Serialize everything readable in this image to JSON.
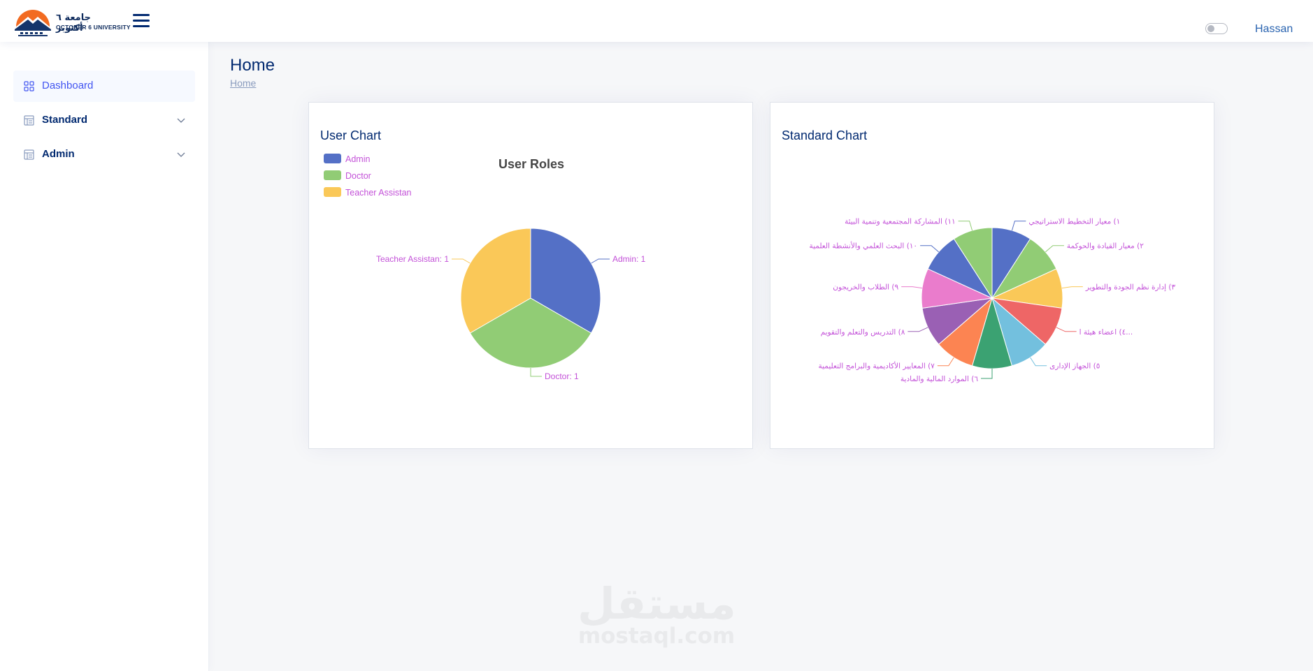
{
  "header": {
    "logo_arabic": "جامعة ٦ أكتوبر",
    "logo_english": "OCTOBER 6 UNIVERSITY",
    "user_name": "Hassan"
  },
  "sidebar": {
    "items": [
      {
        "label": "Dashboard",
        "icon": "grid-icon",
        "active": true
      },
      {
        "label": "Standard",
        "icon": "list-icon",
        "expandable": true
      },
      {
        "label": "Admin",
        "icon": "list-icon",
        "expandable": true
      }
    ]
  },
  "main": {
    "title": "Home",
    "breadcrumb": "Home"
  },
  "watermark": {
    "arabic": "مستقل",
    "english": "mostaql.com"
  },
  "colors": {
    "blue": "#5470c6",
    "green": "#91cc75",
    "yellow": "#fac858",
    "red": "#ee6666",
    "cyan": "#73c0de",
    "teal": "#3ba272",
    "orange": "#fc8452",
    "purple": "#9a60b4",
    "pink": "#ea7ccc",
    "label": "#c351d8"
  },
  "chart_data": [
    {
      "card_title": "User Chart",
      "type": "pie",
      "title": "User Roles",
      "legend": "top-left",
      "categories": [
        "Admin",
        "Doctor",
        "Teacher Assistan"
      ],
      "values": [
        1,
        1,
        1
      ],
      "data_labels": [
        "Admin: 1",
        "Doctor: 1",
        "Teacher Assistan: 1"
      ]
    },
    {
      "card_title": "Standard Chart",
      "type": "pie",
      "title": "",
      "categories": [
        "١) معيار التخطيط الاستراتيجي",
        "٢) معيار القيادة والحوكمة",
        "٣) إدارة نظم الجودة والتطوير",
        "٤) اعضاء هيئة ا...",
        "٥) الجهاز الإدارى",
        "٦) الموارد المالية والمادية",
        "٧) المعايير الأكاديمية والبرامج التعليمية",
        "٨) التدريس والتعلم والتقويم",
        "٩) الطلاب والخريجون",
        "١٠) البحث العلمي والأنشطة العلمية",
        "١١) المشاركة المجتمعية وتنمية البيئة"
      ],
      "values": [
        1,
        1,
        1,
        1,
        1,
        1,
        1,
        1,
        1,
        1,
        1
      ]
    }
  ]
}
